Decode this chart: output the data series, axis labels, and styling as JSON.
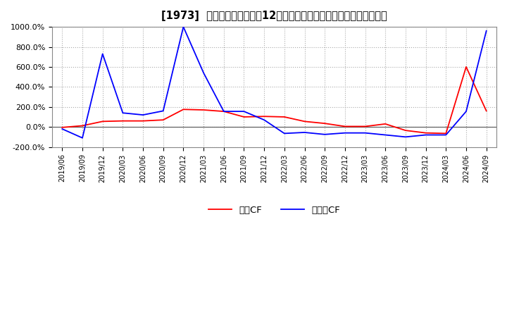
{
  "title": "[1973]  キャッシュフローの12か月移動合計の対前年同期増減率の推移",
  "ylim": [
    -200,
    1000
  ],
  "yticks": [
    -200,
    0,
    200,
    400,
    600,
    800,
    1000
  ],
  "ytick_labels": [
    "-200.0%",
    "0.0%",
    "200.0%",
    "400.0%",
    "600.0%",
    "800.0%",
    "1000.0%"
  ],
  "background_color": "#ffffff",
  "plot_bg_color": "#ffffff",
  "grid_color": "#aaaaaa",
  "legend_labels": [
    "営業CF",
    "フリーCF"
  ],
  "line_colors": [
    "#ff0000",
    "#0000ff"
  ],
  "dates": [
    "2019/06",
    "2019/09",
    "2019/12",
    "2020/03",
    "2020/06",
    "2020/09",
    "2020/12",
    "2021/03",
    "2021/06",
    "2021/09",
    "2021/12",
    "2022/03",
    "2022/06",
    "2022/09",
    "2022/12",
    "2023/03",
    "2023/06",
    "2023/09",
    "2023/12",
    "2024/03",
    "2024/06",
    "2024/09"
  ],
  "eigyo_cf": [
    -5,
    12,
    55,
    60,
    60,
    70,
    175,
    170,
    155,
    100,
    105,
    100,
    55,
    35,
    5,
    5,
    30,
    -35,
    -60,
    -65,
    600,
    160
  ],
  "free_cf": [
    -20,
    -110,
    730,
    140,
    120,
    160,
    1000,
    540,
    155,
    155,
    70,
    -65,
    -55,
    -75,
    -60,
    -60,
    -80,
    -100,
    -80,
    -80,
    155,
    960
  ]
}
